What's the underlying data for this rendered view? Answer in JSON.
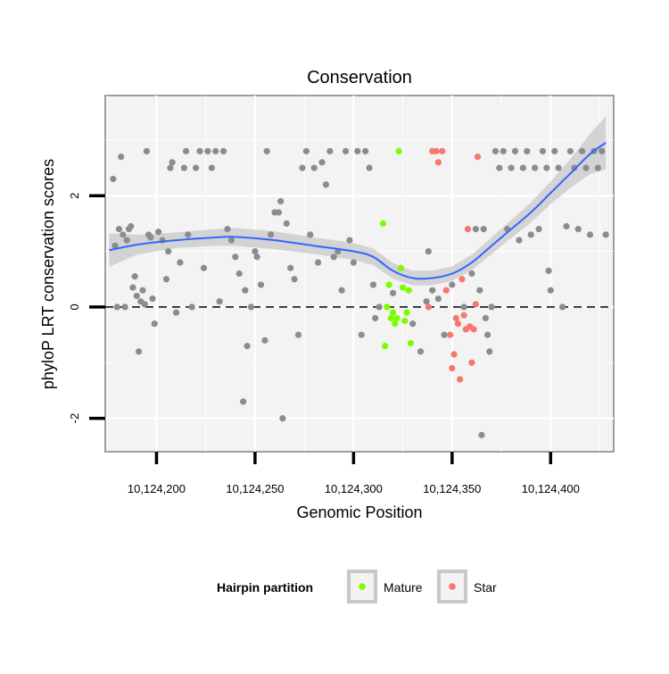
{
  "chart_data": {
    "type": "scatter",
    "title": "Conservation",
    "xlabel": "Genomic Position",
    "ylabel": "phyloP LRT conservation scores",
    "xlim": [
      10124174,
      10124432
    ],
    "ylim": [
      -2.6,
      3.8
    ],
    "x_ticks": [
      10124200,
      10124250,
      10124300,
      10124350,
      10124400
    ],
    "x_tick_labels": [
      "10,124,200",
      "10,124,250",
      "10,124,300",
      "10,124,350",
      "10,124,400"
    ],
    "y_ticks": [
      -2,
      0,
      2
    ],
    "y_tick_labels": [
      "-2",
      "0",
      "2"
    ],
    "grid": true,
    "reference_line": {
      "y": 0,
      "style": "dashed"
    },
    "legend": {
      "title": "Hairpin partition",
      "placement": "bottom",
      "entries": [
        "Mature",
        "Star"
      ]
    },
    "colors": {
      "background": "#f3f3f3",
      "other": "#8c8c8c",
      "Mature": "#7cfc00",
      "Star": "#f8766d",
      "smooth": "#3366ff",
      "ribbon": "#cccccc"
    },
    "series": [
      {
        "group": "other",
        "points": [
          [
            10124178,
            2.3
          ],
          [
            10124180,
            0.0
          ],
          [
            10124182,
            2.7
          ],
          [
            10124185,
            1.2
          ],
          [
            10124186,
            1.4
          ],
          [
            10124188,
            0.35
          ],
          [
            10124190,
            0.2
          ],
          [
            10124191,
            -0.8
          ],
          [
            10124193,
            0.3
          ],
          [
            10124195,
            2.8
          ],
          [
            10124179,
            1.1
          ],
          [
            10124181,
            1.4
          ],
          [
            10124183,
            1.3
          ],
          [
            10124184,
            0.0
          ],
          [
            10124187,
            1.45
          ],
          [
            10124189,
            0.55
          ],
          [
            10124192,
            0.1
          ],
          [
            10124194,
            0.05
          ],
          [
            10124196,
            1.3
          ],
          [
            10124197,
            1.25
          ],
          [
            10124198,
            0.15
          ],
          [
            10124199,
            -0.3
          ],
          [
            10124201,
            1.35
          ],
          [
            10124203,
            1.2
          ],
          [
            10124205,
            0.5
          ],
          [
            10124206,
            1.0
          ],
          [
            10124207,
            2.5
          ],
          [
            10124208,
            2.6
          ],
          [
            10124210,
            -0.1
          ],
          [
            10124212,
            0.8
          ],
          [
            10124214,
            2.5
          ],
          [
            10124215,
            2.8
          ],
          [
            10124216,
            1.3
          ],
          [
            10124218,
            0.0
          ],
          [
            10124220,
            2.5
          ],
          [
            10124222,
            2.8
          ],
          [
            10124224,
            0.7
          ],
          [
            10124226,
            2.8
          ],
          [
            10124228,
            2.5
          ],
          [
            10124230,
            2.8
          ],
          [
            10124232,
            0.1
          ],
          [
            10124234,
            2.8
          ],
          [
            10124236,
            1.4
          ],
          [
            10124238,
            1.2
          ],
          [
            10124240,
            0.9
          ],
          [
            10124242,
            0.6
          ],
          [
            10124244,
            -1.7
          ],
          [
            10124245,
            0.3
          ],
          [
            10124246,
            -0.7
          ],
          [
            10124248,
            0.0
          ],
          [
            10124250,
            1.0
          ],
          [
            10124251,
            0.9
          ],
          [
            10124253,
            0.4
          ],
          [
            10124255,
            -0.6
          ],
          [
            10124256,
            2.8
          ],
          [
            10124258,
            1.3
          ],
          [
            10124260,
            1.7
          ],
          [
            10124262,
            1.7
          ],
          [
            10124263,
            1.9
          ],
          [
            10124264,
            -2.0
          ],
          [
            10124266,
            1.5
          ],
          [
            10124268,
            0.7
          ],
          [
            10124270,
            0.5
          ],
          [
            10124272,
            -0.5
          ],
          [
            10124274,
            2.5
          ],
          [
            10124276,
            2.8
          ],
          [
            10124278,
            1.3
          ],
          [
            10124280,
            2.5
          ],
          [
            10124282,
            0.8
          ],
          [
            10124284,
            2.6
          ],
          [
            10124286,
            2.2
          ],
          [
            10124288,
            2.8
          ],
          [
            10124290,
            0.9
          ],
          [
            10124292,
            1.0
          ],
          [
            10124294,
            0.3
          ],
          [
            10124296,
            2.8
          ],
          [
            10124298,
            1.2
          ],
          [
            10124300,
            0.8
          ],
          [
            10124302,
            2.8
          ],
          [
            10124304,
            -0.5
          ],
          [
            10124306,
            2.8
          ],
          [
            10124308,
            2.5
          ],
          [
            10124310,
            0.4
          ],
          [
            10124311,
            -0.2
          ],
          [
            10124313,
            0.0
          ],
          [
            10124320,
            0.25
          ],
          [
            10124330,
            -0.3
          ],
          [
            10124334,
            -0.8
          ],
          [
            10124337,
            0.1
          ],
          [
            10124338,
            1.0
          ],
          [
            10124340,
            0.3
          ],
          [
            10124343,
            0.15
          ],
          [
            10124346,
            -0.5
          ],
          [
            10124350,
            0.4
          ],
          [
            10124356,
            0.0
          ],
          [
            10124360,
            0.6
          ],
          [
            10124362,
            1.4
          ],
          [
            10124364,
            0.3
          ],
          [
            10124365,
            -2.3
          ],
          [
            10124366,
            1.4
          ],
          [
            10124367,
            -0.2
          ],
          [
            10124368,
            -0.5
          ],
          [
            10124369,
            -0.8
          ],
          [
            10124370,
            0.0
          ],
          [
            10124372,
            2.8
          ],
          [
            10124374,
            2.5
          ],
          [
            10124376,
            2.8
          ],
          [
            10124378,
            1.4
          ],
          [
            10124380,
            2.5
          ],
          [
            10124382,
            2.8
          ],
          [
            10124384,
            1.2
          ],
          [
            10124386,
            2.5
          ],
          [
            10124388,
            2.8
          ],
          [
            10124390,
            1.3
          ],
          [
            10124392,
            2.5
          ],
          [
            10124394,
            1.4
          ],
          [
            10124396,
            2.8
          ],
          [
            10124398,
            2.5
          ],
          [
            10124399,
            0.65
          ],
          [
            10124400,
            0.3
          ],
          [
            10124402,
            2.8
          ],
          [
            10124404,
            2.5
          ],
          [
            10124406,
            0.0
          ],
          [
            10124408,
            1.45
          ],
          [
            10124410,
            2.8
          ],
          [
            10124412,
            2.5
          ],
          [
            10124414,
            1.4
          ],
          [
            10124416,
            2.8
          ],
          [
            10124418,
            2.5
          ],
          [
            10124420,
            1.3
          ],
          [
            10124422,
            2.8
          ],
          [
            10124424,
            2.5
          ],
          [
            10124426,
            2.8
          ],
          [
            10124428,
            1.3
          ]
        ]
      },
      {
        "group": "Mature",
        "points": [
          [
            10124315,
            1.5
          ],
          [
            10124316,
            -0.7
          ],
          [
            10124317,
            0.0
          ],
          [
            10124318,
            0.4
          ],
          [
            10124319,
            -0.2
          ],
          [
            10124320,
            -0.1
          ],
          [
            10124321,
            -0.3
          ],
          [
            10124322,
            -0.2
          ],
          [
            10124323,
            2.8
          ],
          [
            10124324,
            0.7
          ],
          [
            10124325,
            0.35
          ],
          [
            10124326,
            -0.25
          ],
          [
            10124327,
            -0.1
          ],
          [
            10124328,
            0.3
          ],
          [
            10124329,
            -0.65
          ]
        ]
      },
      {
        "group": "Star",
        "points": [
          [
            10124338,
            0.0
          ],
          [
            10124340,
            2.8
          ],
          [
            10124342,
            2.8
          ],
          [
            10124343,
            2.6
          ],
          [
            10124345,
            2.8
          ],
          [
            10124347,
            0.3
          ],
          [
            10124349,
            -0.5
          ],
          [
            10124350,
            -1.1
          ],
          [
            10124351,
            -0.85
          ],
          [
            10124352,
            -0.2
          ],
          [
            10124353,
            -0.3
          ],
          [
            10124354,
            -1.3
          ],
          [
            10124355,
            0.5
          ],
          [
            10124356,
            -0.15
          ],
          [
            10124357,
            -0.4
          ],
          [
            10124358,
            1.4
          ],
          [
            10124359,
            -0.35
          ],
          [
            10124360,
            -1.0
          ],
          [
            10124361,
            -0.4
          ],
          [
            10124362,
            0.05
          ],
          [
            10124363,
            2.7
          ]
        ]
      }
    ],
    "smooth": [
      [
        10124176,
        1.02
      ],
      [
        10124190,
        1.12
      ],
      [
        10124210,
        1.2
      ],
      [
        10124230,
        1.25
      ],
      [
        10124240,
        1.26
      ],
      [
        10124260,
        1.2
      ],
      [
        10124280,
        1.1
      ],
      [
        10124300,
        1.0
      ],
      [
        10124310,
        0.9
      ],
      [
        10124320,
        0.65
      ],
      [
        10124330,
        0.52
      ],
      [
        10124340,
        0.52
      ],
      [
        10124350,
        0.6
      ],
      [
        10124360,
        0.8
      ],
      [
        10124370,
        1.1
      ],
      [
        10124380,
        1.4
      ],
      [
        10124390,
        1.7
      ],
      [
        10124400,
        2.05
      ],
      [
        10124410,
        2.4
      ],
      [
        10124420,
        2.75
      ],
      [
        10124428,
        2.95
      ]
    ],
    "ribbon_halfwidth": [
      0.3,
      0.18,
      0.14,
      0.15,
      0.16,
      0.16,
      0.15,
      0.15,
      0.15,
      0.14,
      0.13,
      0.13,
      0.13,
      0.14,
      0.15,
      0.16,
      0.18,
      0.2,
      0.26,
      0.36,
      0.48
    ]
  }
}
